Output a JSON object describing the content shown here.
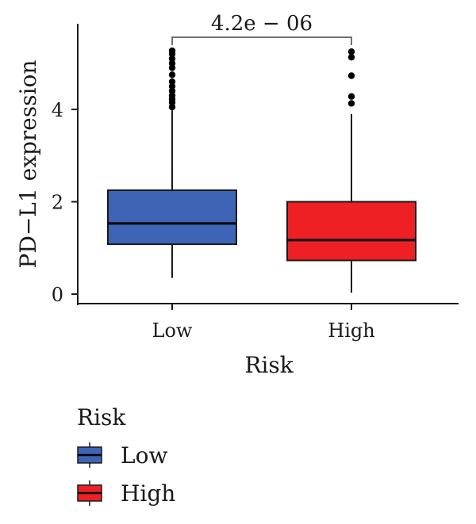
{
  "chart_data": {
    "type": "box",
    "xlabel": "Risk",
    "ylabel": "PD−L1 expression",
    "ylim": [
      -0.1,
      5.8
    ],
    "yticks": [
      0,
      2,
      4
    ],
    "categories": [
      "Low",
      "High"
    ],
    "boxes": [
      {
        "category": "Low",
        "min": 0.35,
        "q1": 1.08,
        "median": 1.53,
        "q3": 2.25,
        "max": 3.98,
        "outliers": [
          4.05,
          4.15,
          4.22,
          4.3,
          4.4,
          4.5,
          4.6,
          4.75,
          4.9,
          5.0,
          5.1,
          5.2,
          5.27
        ]
      },
      {
        "category": "High",
        "min": 0.03,
        "q1": 0.73,
        "median": 1.17,
        "q3": 2.0,
        "max": 3.9,
        "outliers": [
          4.13,
          4.28,
          4.73,
          5.13,
          5.25
        ]
      }
    ],
    "significance": {
      "label": "4.2e − 06",
      "between": [
        "Low",
        "High"
      ]
    },
    "grid": false,
    "legend": {
      "title": "Risk",
      "placement": "bottom",
      "entries": [
        {
          "label": "Low",
          "color": "#3e64b5"
        },
        {
          "label": "High",
          "color": "#ee2024"
        }
      ]
    }
  }
}
